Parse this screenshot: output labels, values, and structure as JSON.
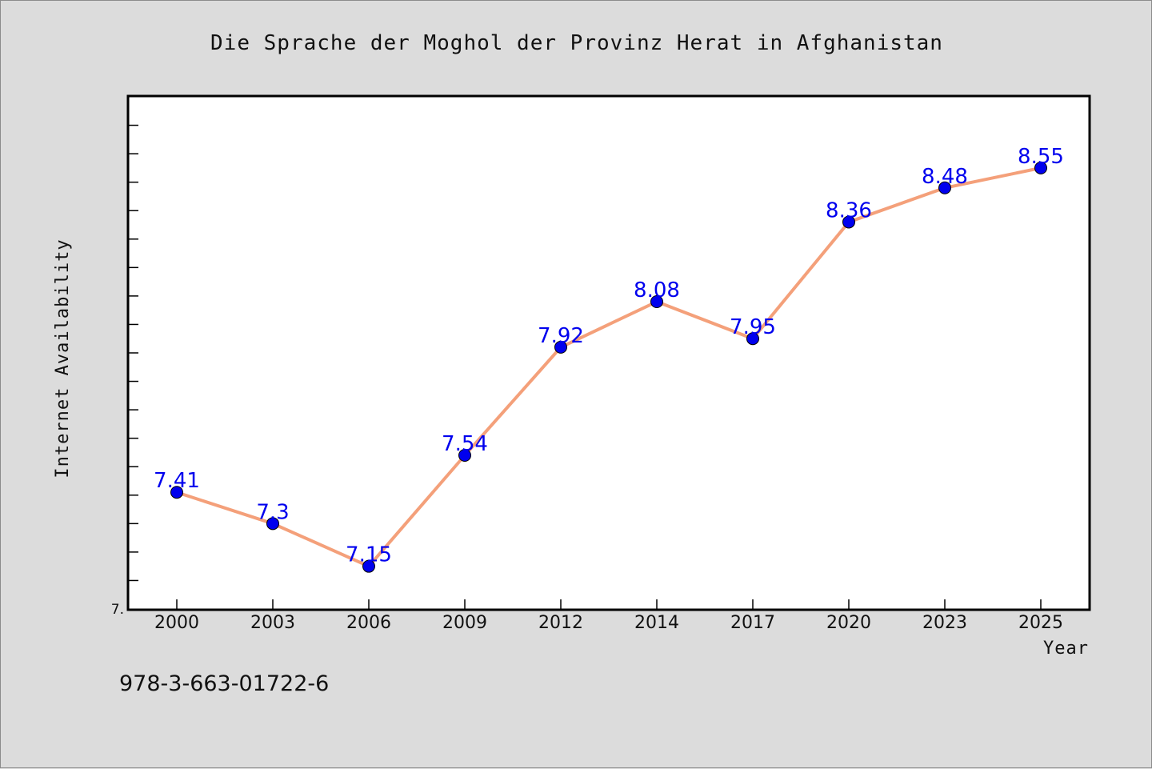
{
  "footer_code": "978-3-663-01722-6",
  "chart_data": {
    "type": "line",
    "title": "Die Sprache der Moghol der Provinz Herat in Afghanistan",
    "xlabel": "Year",
    "ylabel": "Internet Availability",
    "categories": [
      "2000",
      "2003",
      "2006",
      "2009",
      "2012",
      "2014",
      "2017",
      "2020",
      "2023",
      "2025"
    ],
    "series": [
      {
        "values": [
          7.41,
          7.3,
          7.15,
          7.54,
          7.92,
          8.08,
          7.95,
          8.36,
          8.48,
          8.55
        ],
        "labels": [
          "7.41",
          "7.3",
          "7.15",
          "7.54",
          "7.92",
          "8.08",
          "7.95",
          "8.36",
          "8.48",
          "8.55"
        ],
        "line_color": "#f4a07a",
        "marker_color": "#0000ee"
      }
    ],
    "ylim": [
      7.0,
      8.8
    ],
    "y_tick_labels": [
      "7."
    ],
    "y_minor_tick_step": 0.1,
    "grid": false,
    "legend": "none",
    "background": "#ffffff",
    "figure_background": "#dcdcdc"
  }
}
